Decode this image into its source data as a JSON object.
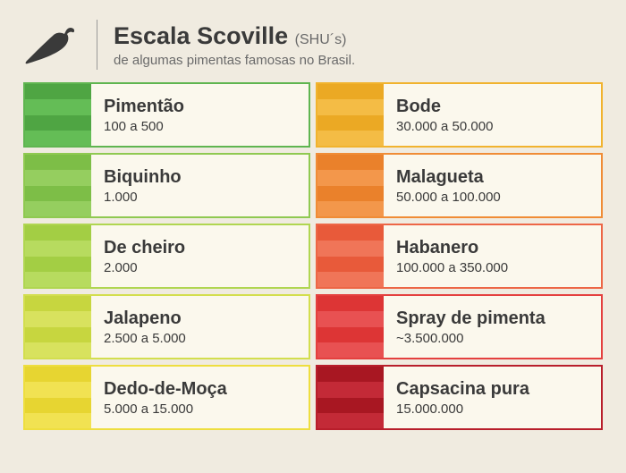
{
  "header": {
    "title": "Escala Scoville",
    "units": "(SHU´s)",
    "subtitle": "de algumas pimentas famosas no Brasil.",
    "icon_color": "#3a3a3a",
    "divider_color": "#999999"
  },
  "card_background": "#fbf8ed",
  "page_background": "#f0ebe0",
  "left": [
    {
      "name": "Pimentão",
      "range": "100 a 500",
      "border": "#5fb550",
      "stripes": [
        "#4fa543",
        "#64bd56",
        "#4fa543",
        "#64bd56"
      ]
    },
    {
      "name": "Biquinho",
      "range": "1.000",
      "border": "#8fc951",
      "stripes": [
        "#7dbe47",
        "#95ce5f",
        "#7dbe47",
        "#95ce5f"
      ]
    },
    {
      "name": "De cheiro",
      "range": "2.000",
      "border": "#b0d651",
      "stripes": [
        "#a3ce44",
        "#b7db5f",
        "#a3ce44",
        "#b7db5f"
      ]
    },
    {
      "name": "Jalapeno",
      "range": "2.500 a 5.000",
      "border": "#d3de4e",
      "stripes": [
        "#c7d63f",
        "#d8e25e",
        "#c7d63f",
        "#d8e25e"
      ]
    },
    {
      "name": "Dedo-de-Moça",
      "range": "5.000 a 15.000",
      "border": "#eede3f",
      "stripes": [
        "#e7d531",
        "#f1e252",
        "#e7d531",
        "#f1e252"
      ]
    }
  ],
  "right": [
    {
      "name": "Bode",
      "range": "30.000 a 50.000",
      "border": "#f1b32e",
      "stripes": [
        "#eba924",
        "#f4bc45",
        "#eba924",
        "#f4bc45"
      ]
    },
    {
      "name": "Malagueta",
      "range": "50.000 a 100.000",
      "border": "#f08c36",
      "stripes": [
        "#ea812b",
        "#f3974b",
        "#ea812b",
        "#f3974b"
      ]
    },
    {
      "name": "Habanero",
      "range": "100.000 a 350.000",
      "border": "#ed6646",
      "stripes": [
        "#e85a3a",
        "#f07558",
        "#e85a3a",
        "#f07558"
      ]
    },
    {
      "name": "Spray de pimenta",
      "range": "~3.500.000",
      "border": "#e4403f",
      "stripes": [
        "#dd3535",
        "#e85152",
        "#dd3535",
        "#e85152"
      ]
    },
    {
      "name": "Capsacina pura",
      "range": "15.000.000",
      "border": "#b81e2b",
      "stripes": [
        "#a81722",
        "#c32a37",
        "#a81722",
        "#c32a37"
      ]
    }
  ]
}
